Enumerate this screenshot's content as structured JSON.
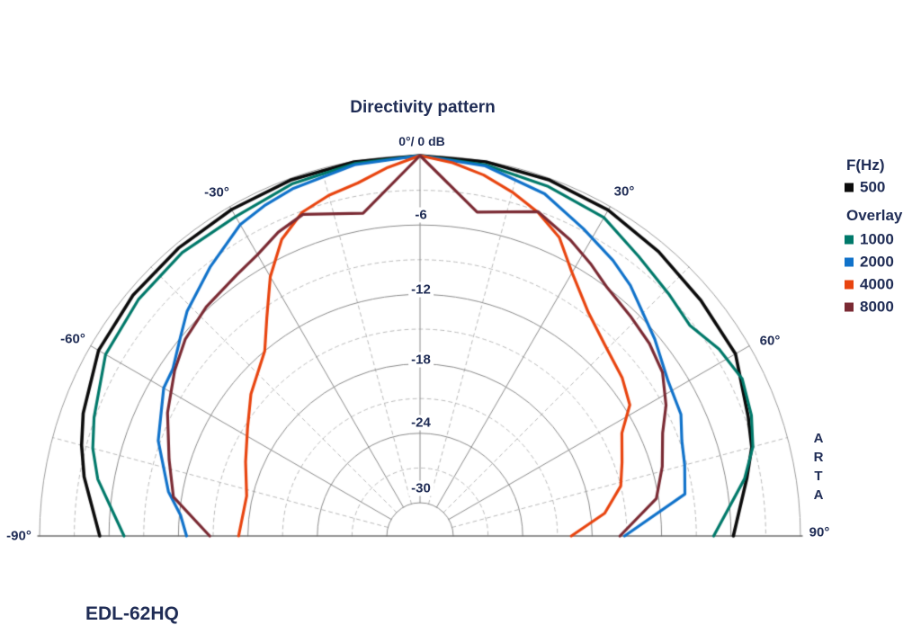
{
  "page": {
    "background": "#ffffff"
  },
  "title": "Directivity pattern",
  "apex_label": "0°/ 0 dB",
  "angle_labels": {
    "left_30": "-30°",
    "right_30": "30°",
    "left_60": "-60°",
    "right_60": "60°",
    "left_90": "-90°",
    "right_90": "90°"
  },
  "db_labels": [
    "-6",
    "-12",
    "-18",
    "-24",
    "-30"
  ],
  "legend": {
    "primary_title": "F(Hz)",
    "primary_items": [
      {
        "label": "500",
        "color": "#0b0b0b"
      }
    ],
    "overlay_title": "Overlay",
    "overlay_items": [
      {
        "label": "1000",
        "color": "#00796a"
      },
      {
        "label": "2000",
        "color": "#1072ca"
      },
      {
        "label": "4000",
        "color": "#e8440f"
      },
      {
        "label": "8000",
        "color": "#7a2a33"
      }
    ]
  },
  "branding": {
    "letters": [
      "A",
      "R",
      "T",
      "A"
    ]
  },
  "footer": {
    "device_label": "EDL-62HQ"
  },
  "colors": {
    "text": "#1f2c55",
    "grid_solid": "#898989",
    "grid_dashed": "#b8b8b8",
    "outer_ring": "#9b9b9b",
    "baseline": "#6f6f6f"
  },
  "chart_data": {
    "type": "line",
    "subtype": "polar-directivity-semicircle",
    "title": "Directivity pattern",
    "angle_unit": "degrees",
    "magnitude_unit": "dB",
    "angle_range": [
      -90,
      90
    ],
    "r_axis": {
      "max": 0,
      "min": -30,
      "solid_rings_db": [
        -6,
        -12,
        -18,
        -24,
        -30
      ],
      "dashed_rings_db": [
        -3,
        -9,
        -15,
        -21,
        -27
      ],
      "solid_radials_deg": [
        -60,
        -30,
        0,
        30,
        60
      ],
      "dashed_radials_deg": [
        -75,
        -45,
        -15,
        15,
        45,
        75
      ]
    },
    "legend_position": "right",
    "series": [
      {
        "name": "500",
        "color": "#0b0b0b",
        "width": 3.6,
        "points": [
          [
            -90,
            -5.2
          ],
          [
            -80,
            -3.4
          ],
          [
            -75,
            -2.6
          ],
          [
            -70,
            -1.9
          ],
          [
            -60,
            -0.8
          ],
          [
            -50,
            -0.5
          ],
          [
            -40,
            -0.4
          ],
          [
            -30,
            -0.3
          ],
          [
            -20,
            -0.15
          ],
          [
            -10,
            -0.05
          ],
          [
            0,
            0
          ],
          [
            10,
            -0.05
          ],
          [
            20,
            -0.15
          ],
          [
            30,
            -0.35
          ],
          [
            40,
            -0.8
          ],
          [
            50,
            -1.2
          ],
          [
            60,
            -1.4
          ],
          [
            70,
            -2.7
          ],
          [
            75,
            -3.2
          ],
          [
            80,
            -4.2
          ],
          [
            90,
            -5.8
          ]
        ]
      },
      {
        "name": "1000",
        "color": "#00796a",
        "width": 3.2,
        "points": [
          [
            -90,
            -7.3
          ],
          [
            -80,
            -4.6
          ],
          [
            -75,
            -3.6
          ],
          [
            -70,
            -2.9
          ],
          [
            -60,
            -1.5
          ],
          [
            -50,
            -1.1
          ],
          [
            -40,
            -0.9
          ],
          [
            -30,
            -1.0
          ],
          [
            -20,
            -0.5
          ],
          [
            -10,
            -0.2
          ],
          [
            0,
            0
          ],
          [
            10,
            -0.3
          ],
          [
            20,
            -0.7
          ],
          [
            30,
            -1.1
          ],
          [
            38,
            -2.2
          ],
          [
            46,
            -2.9
          ],
          [
            52,
            -3.3
          ],
          [
            58,
            -2.4
          ],
          [
            64,
            -1.9
          ],
          [
            70,
            -2.4
          ],
          [
            75,
            -3.1
          ],
          [
            80,
            -4.4
          ],
          [
            90,
            -7.5
          ]
        ]
      },
      {
        "name": "2000",
        "color": "#1072ca",
        "width": 3.2,
        "points": [
          [
            -90,
            -12.7
          ],
          [
            -85,
            -12.1
          ],
          [
            -80,
            -10.8
          ],
          [
            -70,
            -8.8
          ],
          [
            -60,
            -7.3
          ],
          [
            -56,
            -7.1
          ],
          [
            -50,
            -5.9
          ],
          [
            -46,
            -4.9
          ],
          [
            -38,
            -3.4
          ],
          [
            -30,
            -1.8
          ],
          [
            -25,
            -1.3
          ],
          [
            -20,
            -0.9
          ],
          [
            -10,
            -0.3
          ],
          [
            0,
            0
          ],
          [
            10,
            -0.4
          ],
          [
            20,
            -1.4
          ],
          [
            28,
            -2.8
          ],
          [
            35,
            -3.8
          ],
          [
            40,
            -4.6
          ],
          [
            50,
            -6.4
          ],
          [
            58,
            -7.6
          ],
          [
            65,
            -8.0
          ],
          [
            70,
            -8.8
          ],
          [
            75,
            -9.2
          ],
          [
            81,
            -9.7
          ],
          [
            90,
            -15.2
          ]
        ]
      },
      {
        "name": "4000",
        "color": "#e8440f",
        "width": 3.2,
        "points": [
          [
            -90,
            -17.2
          ],
          [
            -77,
            -17.5
          ],
          [
            -67,
            -16.5
          ],
          [
            -58,
            -15.3
          ],
          [
            -50,
            -13.8
          ],
          [
            -40,
            -12.0
          ],
          [
            -35,
            -9.8
          ],
          [
            -30,
            -7.0
          ],
          [
            -25,
            -4.6
          ],
          [
            -20,
            -3.1
          ],
          [
            -15,
            -2.4
          ],
          [
            -10,
            -1.9
          ],
          [
            -5,
            -0.9
          ],
          [
            0,
            0
          ],
          [
            5,
            -0.5
          ],
          [
            10,
            -1.2
          ],
          [
            15,
            -2.1
          ],
          [
            20,
            -3.1
          ],
          [
            25,
            -4.4
          ],
          [
            30,
            -6.6
          ],
          [
            37,
            -8.7
          ],
          [
            44,
            -9.9
          ],
          [
            52,
            -10.7
          ],
          [
            58,
            -11.5
          ],
          [
            63,
            -13.3
          ],
          [
            70,
            -14.3
          ],
          [
            76,
            -15.0
          ],
          [
            83,
            -16.8
          ],
          [
            90,
            -19.8
          ]
        ]
      },
      {
        "name": "8000",
        "color": "#7a2a33",
        "width": 3.2,
        "points": [
          [
            -90,
            -14.7
          ],
          [
            -81,
            -11.3
          ],
          [
            -73,
            -10.2
          ],
          [
            -64,
            -8.6
          ],
          [
            -56,
            -7.3
          ],
          [
            -50,
            -6.4
          ],
          [
            -43,
            -5.8
          ],
          [
            -35,
            -5.3
          ],
          [
            -30,
            -4.8
          ],
          [
            -25,
            -3.9
          ],
          [
            -20,
            -3.3
          ],
          [
            -10,
            -4.55
          ],
          [
            0,
            0
          ],
          [
            10,
            -4.45
          ],
          [
            20,
            -3.05
          ],
          [
            27,
            -4.2
          ],
          [
            32,
            -5.1
          ],
          [
            37,
            -6.0
          ],
          [
            44,
            -6.6
          ],
          [
            50,
            -7.0
          ],
          [
            56,
            -7.6
          ],
          [
            62,
            -8.8
          ],
          [
            67,
            -10.1
          ],
          [
            74,
            -11.1
          ],
          [
            81,
            -12.2
          ],
          [
            90,
            -15.6
          ]
        ]
      }
    ]
  }
}
